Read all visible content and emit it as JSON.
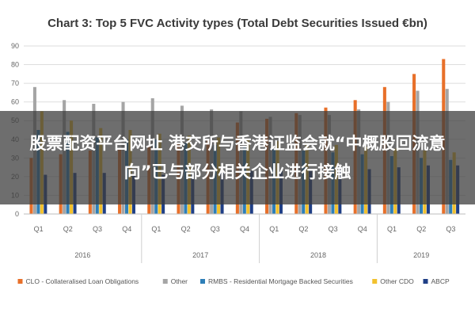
{
  "chart_data": {
    "type": "bar",
    "title": "Chart 3: Top 5 FVC Activity types (Total Debt Securities Issued €bn)",
    "categories": [
      "Q1",
      "Q2",
      "Q3",
      "Q4",
      "Q1",
      "Q2",
      "Q3",
      "Q4",
      "Q1",
      "Q2",
      "Q3",
      "Q4",
      "Q1",
      "Q2",
      "Q3"
    ],
    "year_groups": [
      {
        "label": "2016",
        "span": 4
      },
      {
        "label": "2017",
        "span": 4
      },
      {
        "label": "2018",
        "span": 4
      },
      {
        "label": "2019",
        "span": 3
      }
    ],
    "ylim": [
      0,
      90
    ],
    "yticks": [
      0,
      10,
      20,
      30,
      40,
      50,
      60,
      70,
      80,
      90
    ],
    "xlabel": "",
    "ylabel": "",
    "grid": true,
    "legend_position": "bottom",
    "series": [
      {
        "name": "CLO - Collateralised Loan Obligations",
        "color": "#e8702a",
        "values": [
          30,
          32,
          34,
          35,
          36,
          38,
          40,
          49,
          51,
          54,
          57,
          61,
          68,
          75,
          83
        ]
      },
      {
        "name": "Other",
        "color": "#a5a5a5",
        "values": [
          68,
          61,
          59,
          60,
          62,
          58,
          56,
          55,
          52,
          53,
          53,
          56,
          60,
          66,
          67
        ]
      },
      {
        "name": "RMBS - Residential Mortgage Backed Securities",
        "color": "#2e7fb8",
        "values": [
          45,
          44,
          41,
          40,
          40,
          38,
          37,
          36,
          35,
          34,
          33,
          32,
          31,
          30,
          29
        ]
      },
      {
        "name": "Other CDO",
        "color": "#f2c12e",
        "values": [
          55,
          50,
          46,
          45,
          43,
          42,
          41,
          40,
          39,
          38,
          37,
          36,
          35,
          34,
          33
        ]
      },
      {
        "name": "ABCP",
        "color": "#1f3f86",
        "values": [
          21,
          22,
          22,
          21,
          21,
          22,
          22,
          23,
          23,
          23,
          24,
          24,
          25,
          26,
          26
        ]
      }
    ]
  },
  "overlay": {
    "headline": "股票配资平台网址 港交所与香港证监会就“中概股回流意向”已与部分相关企业进行接触"
  }
}
